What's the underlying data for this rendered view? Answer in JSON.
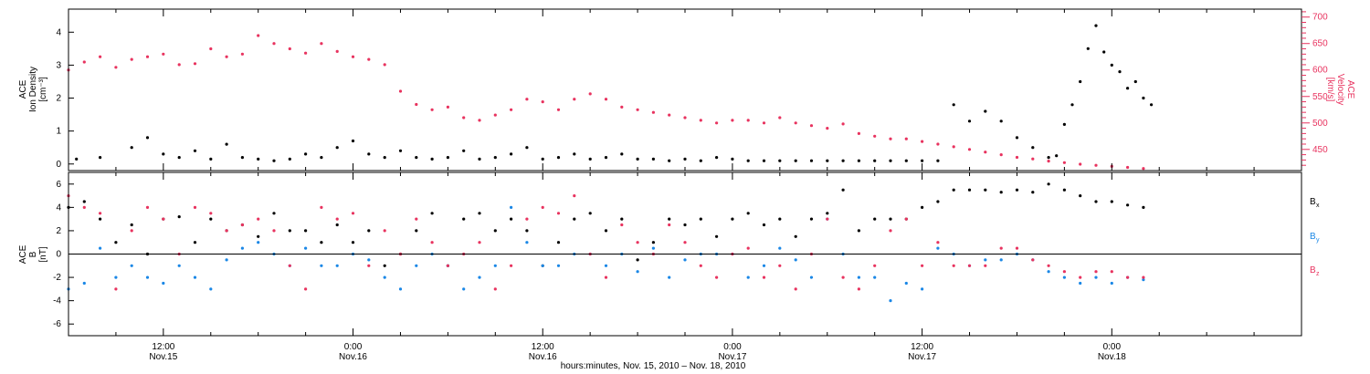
{
  "colors": {
    "black": "#000000",
    "pink": "#e8335f",
    "blue": "#1a87e6",
    "frame": "#000000",
    "background": "#ffffff"
  },
  "x_axis": {
    "label": "hours:minutes, Nov. 15, 2010 – Nov. 18, 2010",
    "range_hours": [
      -6,
      72
    ],
    "major_ticks": [
      {
        "hours": 0,
        "time": "12:00",
        "date": "Nov.15"
      },
      {
        "hours": 12,
        "time": "0:00",
        "date": "Nov.16"
      },
      {
        "hours": 24,
        "time": "12:00",
        "date": "Nov.16"
      },
      {
        "hours": 36,
        "time": "0:00",
        "date": "Nov.17"
      },
      {
        "hours": 48,
        "time": "12:00",
        "date": "Nov.17"
      },
      {
        "hours": 60,
        "time": "0:00",
        "date": "Nov.18"
      }
    ]
  },
  "chart_data": [
    {
      "type": "scatter",
      "panel": "top",
      "ylabel_left": [
        "ACE",
        "Ion Density",
        "[cm⁻³]"
      ],
      "ylabel_right": [
        "ACE",
        "Velocity",
        "[km/s]"
      ],
      "ylim_left": [
        -0.2,
        4.7
      ],
      "yticks_left": [
        "0",
        "1",
        "2",
        "3",
        "4"
      ],
      "ylim_right": [
        410,
        715
      ],
      "yticks_right": [
        "450",
        "500",
        "550",
        "600",
        "650",
        "700"
      ],
      "series": [
        {
          "axis": "left",
          "color": "black",
          "x": [
            -5.5,
            -4,
            -2,
            -1,
            0,
            1,
            2,
            3,
            4,
            5,
            6,
            7,
            8,
            9,
            10,
            11,
            12,
            13,
            14,
            15,
            16,
            17,
            18,
            19,
            20,
            21,
            22,
            23,
            24,
            25,
            26,
            27,
            28,
            29,
            30,
            31,
            32,
            33,
            34,
            35,
            36,
            37,
            38,
            39,
            40,
            41,
            42,
            43,
            44,
            45,
            46,
            47,
            48,
            49,
            50,
            51,
            52,
            53,
            54,
            55,
            56,
            56.5,
            57,
            57.5,
            58,
            58.5,
            59,
            59.5,
            60,
            60.5,
            61,
            61.5,
            62,
            62.5
          ],
          "y": [
            0.15,
            0.2,
            0.5,
            0.8,
            0.3,
            0.2,
            0.4,
            0.15,
            0.6,
            0.2,
            0.15,
            0.1,
            0.15,
            0.3,
            0.2,
            0.5,
            0.7,
            0.3,
            0.2,
            0.4,
            0.2,
            0.15,
            0.2,
            0.4,
            0.15,
            0.2,
            0.3,
            0.5,
            0.15,
            0.2,
            0.3,
            0.15,
            0.2,
            0.3,
            0.15,
            0.15,
            0.1,
            0.15,
            0.1,
            0.2,
            0.15,
            0.1,
            0.1,
            0.1,
            0.1,
            0.1,
            0.1,
            0.1,
            0.1,
            0.1,
            0.1,
            0.1,
            0.1,
            0.1,
            1.8,
            1.3,
            1.6,
            1.3,
            0.8,
            0.5,
            0.2,
            0.25,
            1.2,
            1.8,
            2.5,
            3.5,
            4.2,
            3.4,
            3.0,
            2.8,
            2.3,
            2.5,
            2.0,
            1.8
          ]
        },
        {
          "axis": "right",
          "color": "pink",
          "x": [
            -6,
            -5,
            -4,
            -3,
            -2,
            -1,
            0,
            1,
            2,
            3,
            4,
            5,
            6,
            7,
            8,
            9,
            10,
            11,
            12,
            13,
            14,
            15,
            16,
            17,
            18,
            19,
            20,
            21,
            22,
            23,
            24,
            25,
            26,
            27,
            28,
            29,
            30,
            31,
            32,
            33,
            34,
            35,
            36,
            37,
            38,
            39,
            40,
            41,
            42,
            43,
            44,
            45,
            46,
            47,
            48,
            49,
            50,
            51,
            52,
            53,
            54,
            55,
            56,
            57,
            58,
            59,
            60,
            61,
            62
          ],
          "y": [
            600,
            615,
            625,
            605,
            620,
            625,
            630,
            610,
            612,
            640,
            625,
            630,
            665,
            650,
            640,
            632,
            650,
            635,
            625,
            620,
            610,
            560,
            535,
            525,
            530,
            510,
            505,
            515,
            525,
            545,
            540,
            525,
            545,
            555,
            545,
            530,
            525,
            520,
            515,
            510,
            505,
            500,
            505,
            505,
            500,
            510,
            500,
            495,
            490,
            498,
            480,
            475,
            470,
            470,
            465,
            460,
            455,
            450,
            445,
            440,
            435,
            432,
            428,
            425,
            422,
            420,
            418,
            416,
            414
          ]
        }
      ]
    },
    {
      "type": "scatter",
      "panel": "bottom",
      "ylabel_left": [
        "ACE",
        "B",
        "[nT]"
      ],
      "ylim": [
        -7,
        7
      ],
      "yticks": [
        "-6",
        "-4",
        "-2",
        "0",
        "2",
        "4",
        "6"
      ],
      "zero_line": true,
      "legend": [
        {
          "label": "B",
          "sub": "x",
          "color": "black"
        },
        {
          "label": "B",
          "sub": "y",
          "color": "blue"
        },
        {
          "label": "B",
          "sub": "z",
          "color": "pink"
        }
      ],
      "series": [
        {
          "name": "Bx",
          "color": "black",
          "x": [
            -6,
            -5,
            -4,
            -3,
            -2,
            -1,
            0,
            1,
            2,
            3,
            4,
            5,
            6,
            7,
            8,
            9,
            10,
            11,
            12,
            13,
            14,
            15,
            16,
            17,
            18,
            19,
            20,
            21,
            22,
            23,
            24,
            25,
            26,
            27,
            28,
            29,
            30,
            31,
            32,
            33,
            34,
            35,
            36,
            37,
            38,
            39,
            40,
            41,
            42,
            43,
            44,
            45,
            46,
            47,
            48,
            49,
            50,
            51,
            52,
            53,
            54,
            55,
            56,
            57,
            58,
            59,
            60,
            61,
            62
          ],
          "y": [
            4,
            4.5,
            3,
            1,
            2.5,
            0,
            3,
            3.2,
            1,
            3,
            2,
            2.5,
            1.5,
            3.5,
            2,
            2,
            1,
            2.5,
            1,
            2,
            -1,
            0,
            2,
            3.5,
            -1,
            3,
            3.5,
            2,
            3,
            2,
            -1,
            1,
            3,
            3.5,
            2,
            3,
            -0.5,
            1,
            3,
            2.5,
            3,
            1.5,
            3,
            3.5,
            2.5,
            3,
            1.5,
            3,
            3.5,
            5.5,
            2,
            3,
            3,
            3,
            4,
            4.5,
            5.5,
            5.5,
            5.5,
            5.3,
            5.5,
            5.3,
            6,
            5.5,
            5,
            4.5,
            4.5,
            4.2,
            4
          ]
        },
        {
          "name": "By",
          "color": "blue",
          "x": [
            -6,
            -5,
            -4,
            -3,
            -2,
            -1,
            0,
            1,
            2,
            3,
            4,
            5,
            6,
            7,
            8,
            9,
            10,
            11,
            12,
            13,
            14,
            15,
            16,
            17,
            18,
            19,
            20,
            21,
            22,
            23,
            24,
            25,
            26,
            27,
            28,
            29,
            30,
            31,
            32,
            33,
            34,
            35,
            36,
            37,
            38,
            39,
            40,
            41,
            42,
            43,
            44,
            45,
            46,
            47,
            48,
            49,
            50,
            51,
            52,
            53,
            54,
            55,
            56,
            57,
            58,
            59,
            60,
            61,
            62
          ],
          "y": [
            -3,
            -2.5,
            0.5,
            -2,
            -1,
            -2,
            -2.5,
            -1,
            -2,
            -3,
            -0.5,
            0.5,
            1,
            0,
            -1,
            0.5,
            -1,
            -1,
            0,
            -0.5,
            -2,
            -3,
            -1,
            0,
            -1,
            -3,
            -2,
            -1,
            4,
            1,
            -1,
            -1,
            0,
            0,
            -1,
            0,
            -1.5,
            0.5,
            -2,
            -0.5,
            0,
            0,
            0,
            -2,
            -1,
            0.5,
            -0.5,
            -2,
            3,
            0,
            -2,
            -2,
            -4,
            -2.5,
            -3,
            0.5,
            0,
            -1,
            -0.5,
            -0.5,
            0,
            -0.5,
            -1.5,
            -2,
            -2.5,
            -2,
            -2.5,
            -2,
            -2.2
          ]
        },
        {
          "name": "Bz",
          "color": "pink",
          "x": [
            -6,
            -5,
            -4,
            -3,
            -2,
            -1,
            0,
            1,
            2,
            3,
            4,
            5,
            6,
            7,
            8,
            9,
            10,
            11,
            12,
            13,
            14,
            15,
            16,
            17,
            18,
            19,
            20,
            21,
            22,
            23,
            24,
            25,
            26,
            27,
            28,
            29,
            30,
            31,
            32,
            33,
            34,
            35,
            36,
            37,
            38,
            39,
            40,
            41,
            42,
            43,
            44,
            45,
            46,
            47,
            48,
            49,
            50,
            51,
            52,
            53,
            54,
            55,
            56,
            57,
            58,
            59,
            60,
            61,
            62
          ],
          "y": [
            5,
            4,
            3.5,
            -3,
            2,
            4,
            3,
            0,
            4,
            3.5,
            2,
            2.5,
            3,
            2,
            -1,
            -3,
            4,
            3,
            3.5,
            -1,
            2,
            0,
            3,
            1,
            -1,
            0,
            1,
            -3,
            -1,
            3,
            4,
            3.5,
            5,
            0,
            -2,
            2.5,
            1,
            0,
            2.5,
            1,
            -1,
            -2,
            0,
            0.5,
            -2,
            -1,
            -3,
            0,
            3,
            -2,
            -3,
            -1,
            2,
            3,
            -1,
            1,
            -1,
            -1,
            -1,
            0.5,
            0.5,
            -0.5,
            -1,
            -1.5,
            -2,
            -1.5,
            -1.5,
            -2,
            -2
          ]
        }
      ]
    }
  ]
}
